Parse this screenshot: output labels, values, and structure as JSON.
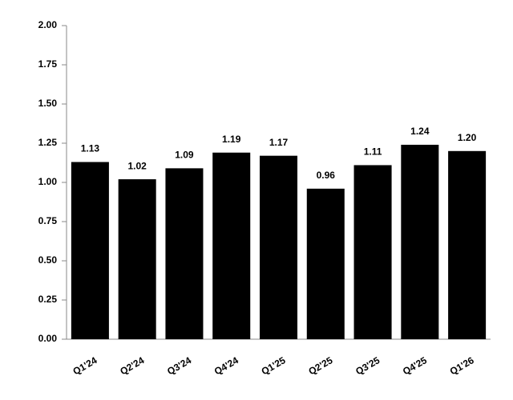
{
  "chart_data": {
    "type": "bar",
    "categories": [
      "Q1'24",
      "Q2'24",
      "Q3'24",
      "Q4'24",
      "Q1'25",
      "Q2'25",
      "Q3'25",
      "Q4'25",
      "Q1'26"
    ],
    "values": [
      1.13,
      1.02,
      1.09,
      1.19,
      1.17,
      0.96,
      1.11,
      1.24,
      1.2
    ],
    "value_labels": [
      "1.13",
      "1.02",
      "1.09",
      "1.19",
      "1.17",
      "0.96",
      "1.11",
      "1.24",
      "1.20"
    ],
    "color": "#000000",
    "ylim": [
      0,
      2
    ],
    "yticks": [
      {
        "value": 0,
        "label": "0.00"
      },
      {
        "value": 0.25,
        "label": "0.25"
      },
      {
        "value": 0.5,
        "label": "0.50"
      },
      {
        "value": 0.75,
        "label": "0.75"
      },
      {
        "value": 1,
        "label": "1.00"
      },
      {
        "value": 1.25,
        "label": "1.25"
      },
      {
        "value": 1.5,
        "label": "1.50"
      },
      {
        "value": 1.75,
        "label": "1.75"
      },
      {
        "value": 2,
        "label": "2.00"
      }
    ],
    "grid": false
  }
}
